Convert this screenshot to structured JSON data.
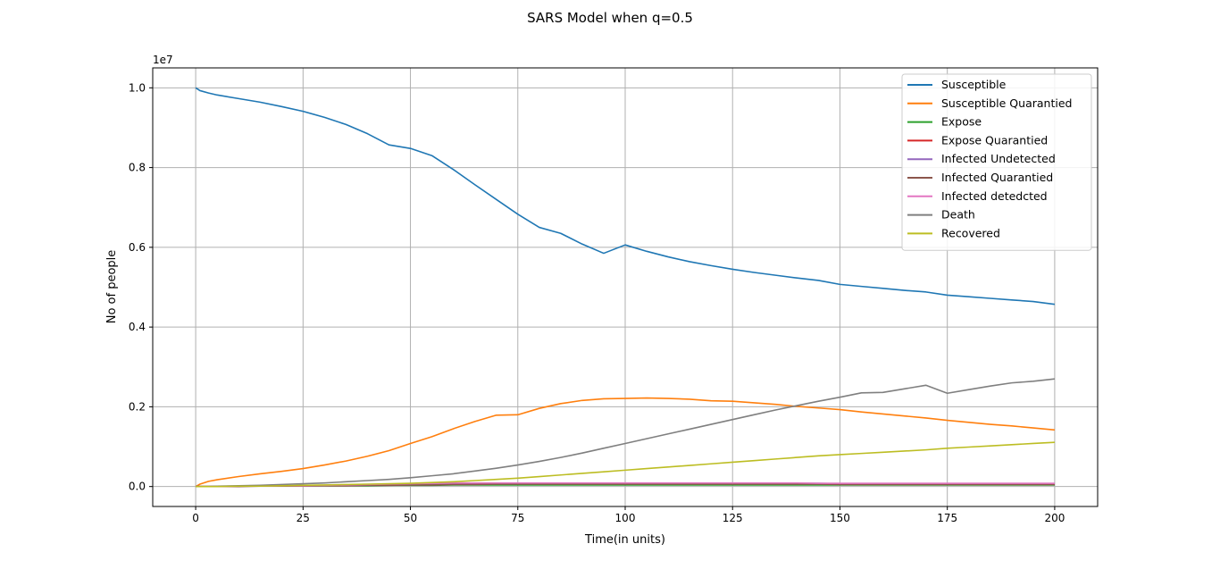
{
  "chart_data": {
    "type": "line",
    "title": "SARS Model when q=0.5",
    "xlabel": "Time(in units)",
    "ylabel": "No of people",
    "y_offset_label": "1e7",
    "xlim": [
      -10,
      210
    ],
    "ylim": [
      -0.05,
      1.05
    ],
    "x_ticks": [
      0,
      25,
      50,
      75,
      100,
      125,
      150,
      175,
      200
    ],
    "y_ticks": [
      0.0,
      0.2,
      0.4,
      0.6,
      0.8,
      1.0
    ],
    "y_tick_labels": [
      "0.0",
      "0.2",
      "0.4",
      "0.6",
      "0.8",
      "1.0"
    ],
    "grid": true,
    "legend_position": "top-right",
    "x": [
      0,
      1,
      3,
      5,
      10,
      15,
      20,
      25,
      30,
      35,
      40,
      45,
      50,
      55,
      60,
      65,
      70,
      75,
      80,
      85,
      90,
      95,
      100,
      105,
      110,
      115,
      120,
      125,
      130,
      135,
      140,
      145,
      150,
      155,
      160,
      165,
      170,
      175,
      180,
      185,
      190,
      195,
      200
    ],
    "series": [
      {
        "name": "Susceptible",
        "color": "#1f77b4",
        "values": [
          1.0,
          0.993,
          0.987,
          0.982,
          0.973,
          0.964,
          0.953,
          0.941,
          0.926,
          0.908,
          0.885,
          0.857,
          0.848,
          0.83,
          0.795,
          0.757,
          0.72,
          0.683,
          0.65,
          0.635,
          0.608,
          0.585,
          0.606,
          0.59,
          0.576,
          0.564,
          0.554,
          0.545,
          0.537,
          0.53,
          0.523,
          0.517,
          0.507,
          0.502,
          0.497,
          0.492,
          0.488,
          0.48,
          0.476,
          0.472,
          0.468,
          0.464,
          0.457
        ]
      },
      {
        "name": "Susceptible Quarantied",
        "color": "#ff7f0e",
        "values": [
          0.0,
          0.006,
          0.013,
          0.017,
          0.025,
          0.032,
          0.038,
          0.045,
          0.054,
          0.064,
          0.076,
          0.09,
          0.108,
          0.125,
          0.145,
          0.163,
          0.179,
          0.18,
          0.196,
          0.208,
          0.216,
          0.22,
          0.221,
          0.222,
          0.221,
          0.219,
          0.215,
          0.214,
          0.21,
          0.206,
          0.201,
          0.197,
          0.193,
          0.187,
          0.182,
          0.177,
          0.172,
          0.166,
          0.161,
          0.156,
          0.152,
          0.147,
          0.142
        ]
      },
      {
        "name": "Expose",
        "color": "#2ca02c",
        "values": [
          0.0,
          0.0,
          0.0,
          0.0,
          0.001,
          0.001,
          0.001,
          0.001,
          0.002,
          0.002,
          0.002,
          0.003,
          0.003,
          0.003,
          0.004,
          0.004,
          0.004,
          0.004,
          0.004,
          0.004,
          0.004,
          0.004,
          0.004,
          0.004,
          0.004,
          0.004,
          0.004,
          0.004,
          0.004,
          0.004,
          0.004,
          0.004,
          0.004,
          0.004,
          0.004,
          0.004,
          0.004,
          0.004,
          0.004,
          0.004,
          0.004,
          0.004,
          0.004
        ]
      },
      {
        "name": "Expose Quarantied",
        "color": "#d62728",
        "values": [
          0.0,
          0.0,
          0.0,
          0.0,
          0.001,
          0.001,
          0.002,
          0.002,
          0.003,
          0.003,
          0.004,
          0.004,
          0.005,
          0.005,
          0.006,
          0.006,
          0.007,
          0.007,
          0.007,
          0.007,
          0.007,
          0.007,
          0.007,
          0.007,
          0.007,
          0.007,
          0.007,
          0.007,
          0.007,
          0.007,
          0.007,
          0.007,
          0.006,
          0.006,
          0.006,
          0.006,
          0.006,
          0.006,
          0.006,
          0.006,
          0.006,
          0.006,
          0.006
        ]
      },
      {
        "name": "Infected Undetected",
        "color": "#9467bd",
        "values": [
          0.0,
          0.0,
          0.0,
          0.0,
          0.001,
          0.001,
          0.002,
          0.002,
          0.003,
          0.003,
          0.004,
          0.005,
          0.006,
          0.006,
          0.007,
          0.007,
          0.008,
          0.008,
          0.008,
          0.008,
          0.008,
          0.008,
          0.008,
          0.008,
          0.008,
          0.008,
          0.008,
          0.008,
          0.008,
          0.008,
          0.008,
          0.008,
          0.007,
          0.007,
          0.007,
          0.007,
          0.007,
          0.007,
          0.007,
          0.007,
          0.007,
          0.007,
          0.007
        ]
      },
      {
        "name": "Infected Quarantied",
        "color": "#8c564b",
        "values": [
          0.0,
          0.0,
          0.0,
          0.0,
          0.0,
          0.001,
          0.001,
          0.001,
          0.002,
          0.002,
          0.003,
          0.003,
          0.004,
          0.004,
          0.005,
          0.005,
          0.006,
          0.006,
          0.006,
          0.006,
          0.006,
          0.006,
          0.006,
          0.006,
          0.006,
          0.006,
          0.006,
          0.006,
          0.006,
          0.006,
          0.006,
          0.006,
          0.005,
          0.005,
          0.005,
          0.005,
          0.005,
          0.005,
          0.005,
          0.005,
          0.005,
          0.005,
          0.005
        ]
      },
      {
        "name": "Infected detedcted",
        "color": "#e377c2",
        "values": [
          0.0,
          0.0,
          0.0,
          0.0,
          0.001,
          0.001,
          0.002,
          0.002,
          0.003,
          0.004,
          0.005,
          0.006,
          0.007,
          0.008,
          0.009,
          0.009,
          0.009,
          0.009,
          0.009,
          0.009,
          0.009,
          0.009,
          0.009,
          0.009,
          0.009,
          0.009,
          0.009,
          0.009,
          0.009,
          0.009,
          0.009,
          0.008,
          0.008,
          0.008,
          0.008,
          0.008,
          0.008,
          0.008,
          0.008,
          0.008,
          0.008,
          0.008,
          0.008
        ]
      },
      {
        "name": "Death",
        "color": "#7f7f7f",
        "values": [
          0.0,
          0.0,
          0.0,
          0.001,
          0.002,
          0.003,
          0.005,
          0.007,
          0.009,
          0.012,
          0.015,
          0.018,
          0.022,
          0.027,
          0.032,
          0.039,
          0.046,
          0.054,
          0.063,
          0.073,
          0.084,
          0.096,
          0.108,
          0.12,
          0.132,
          0.144,
          0.156,
          0.168,
          0.18,
          0.192,
          0.203,
          0.214,
          0.224,
          0.235,
          0.236,
          0.245,
          0.254,
          0.234,
          0.243,
          0.252,
          0.26,
          0.264,
          0.27
        ]
      },
      {
        "name": "Recovered",
        "color": "#bcbd22",
        "values": [
          0.0,
          0.0,
          0.0,
          0.0,
          0.001,
          0.001,
          0.002,
          0.003,
          0.004,
          0.005,
          0.006,
          0.007,
          0.008,
          0.01,
          0.012,
          0.015,
          0.018,
          0.021,
          0.025,
          0.029,
          0.033,
          0.037,
          0.041,
          0.045,
          0.049,
          0.053,
          0.057,
          0.061,
          0.065,
          0.069,
          0.073,
          0.077,
          0.08,
          0.083,
          0.086,
          0.089,
          0.092,
          0.096,
          0.099,
          0.102,
          0.105,
          0.108,
          0.111
        ]
      }
    ]
  }
}
